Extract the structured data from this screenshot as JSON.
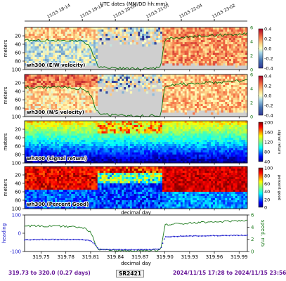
{
  "header": {
    "top_axis_title": "UTC dates (MM/DD hh:mm)",
    "top_ticks": [
      "11/15 18:14",
      "11/15 19:12",
      "11/15 20:09",
      "11/15 21:07",
      "11/15 22:04",
      "11/15 23:02"
    ],
    "top_tick_decimal_day": [
      319.76,
      319.8,
      319.84,
      319.88,
      319.92,
      319.96
    ]
  },
  "chart_data": [
    {
      "type": "heatmap",
      "panel_label": "wh300 (E/W velocity)",
      "ylabel": "meters",
      "ylim": [
        100,
        0
      ],
      "yticks": [
        20,
        40,
        60,
        80,
        100
      ],
      "xlim": [
        319.73,
        320.0
      ],
      "colorbar": {
        "range": [
          -0.4,
          0.4
        ],
        "ticks": [
          "0.4",
          "0.2",
          "0.0",
          "-0.2",
          "-0.4"
        ],
        "colormap": "RdYlBu reversed"
      },
      "speed_axis": {
        "label": "m/s",
        "range": [
          0,
          6
        ],
        "ticks": [
          "6",
          "4",
          "2",
          "0"
        ]
      }
    },
    {
      "type": "heatmap",
      "panel_label": "wh300 (N/S velocity)",
      "ylabel": "meters",
      "ylim": [
        100,
        0
      ],
      "yticks": [
        20,
        40,
        60,
        80,
        100
      ],
      "xlim": [
        319.73,
        320.0
      ],
      "colorbar": {
        "range": [
          -0.4,
          0.4
        ],
        "ticks": [
          "0.4",
          "0.2",
          "0.0",
          "-0.2",
          "-0.4"
        ],
        "colormap": "RdYlBu reversed"
      },
      "speed_axis": {
        "label": "m/s",
        "range": [
          0,
          6
        ],
        "ticks": [
          "6",
          "4",
          "2",
          "0"
        ]
      }
    },
    {
      "type": "heatmap",
      "panel_label": "wh300 (signal return)",
      "ylabel": "meters",
      "ylim": [
        100,
        0
      ],
      "yticks": [
        20,
        40,
        60,
        80,
        100
      ],
      "xlim": [
        319.73,
        320.0
      ],
      "colorbar": {
        "label": "signal return",
        "range": [
          40,
          200
        ],
        "ticks": [
          "200",
          "160",
          "120",
          "80",
          "40"
        ],
        "colormap": "jet"
      }
    },
    {
      "type": "heatmap",
      "panel_label": "wh300 (Percent Good)",
      "ylabel": "meters",
      "ylim": [
        100,
        0
      ],
      "yticks": [
        20,
        40,
        60,
        80,
        100
      ],
      "xlim": [
        319.73,
        320.0
      ],
      "xlabel": "decimal day",
      "colorbar": {
        "label": "percent good",
        "range": [
          0,
          100
        ],
        "ticks": [
          "100",
          "80",
          "60",
          "40",
          "20",
          "0"
        ],
        "colormap": "jet"
      }
    },
    {
      "type": "line",
      "xlabel": "decimal day",
      "xlim": [
        319.73,
        320.0
      ],
      "xticks": [
        "319.75",
        "319.78",
        "319.81",
        "319.84",
        "319.87",
        "319.90",
        "319.93",
        "319.96",
        "319.99"
      ],
      "xtick_values": [
        319.75,
        319.78,
        319.81,
        319.84,
        319.87,
        319.9,
        319.93,
        319.96,
        319.99
      ],
      "left_axis": {
        "label": "heading",
        "range": [
          -100,
          100
        ],
        "ticks": [
          "100",
          "0",
          "-100"
        ]
      },
      "right_axis": {
        "label": "speed, m/s",
        "range": [
          0,
          6
        ],
        "ticks": [
          "6",
          "4",
          "2",
          "0"
        ]
      },
      "series": [
        {
          "axis": "left",
          "color": "#1a1acc",
          "x": [
            319.73,
            319.76,
            319.8,
            319.81,
            319.815,
            319.82,
            319.84,
            319.86,
            319.88,
            319.895,
            319.9,
            319.92,
            319.95,
            319.98,
            320.0
          ],
          "y": [
            -36,
            -34,
            -35,
            -40,
            -60,
            -88,
            -90,
            -90,
            -90,
            -86,
            -20,
            -16,
            -14,
            -12,
            -11
          ]
        },
        {
          "axis": "right",
          "color": "#1b7a1b",
          "x": [
            319.73,
            319.76,
            319.8,
            319.81,
            319.815,
            319.82,
            319.86,
            319.895,
            319.9,
            319.92,
            319.95,
            319.98,
            320.0
          ],
          "y": [
            4.2,
            4.2,
            4.0,
            3.2,
            1.5,
            0.3,
            0.1,
            0.2,
            4.4,
            4.6,
            4.8,
            5.0,
            5.1
          ]
        }
      ]
    }
  ],
  "footer": {
    "left": "319.73 to 320.0 (0.27 days)",
    "middle": "SR2421",
    "right": "2024/11/15 17:28 to 2024/11/15 23:56"
  }
}
